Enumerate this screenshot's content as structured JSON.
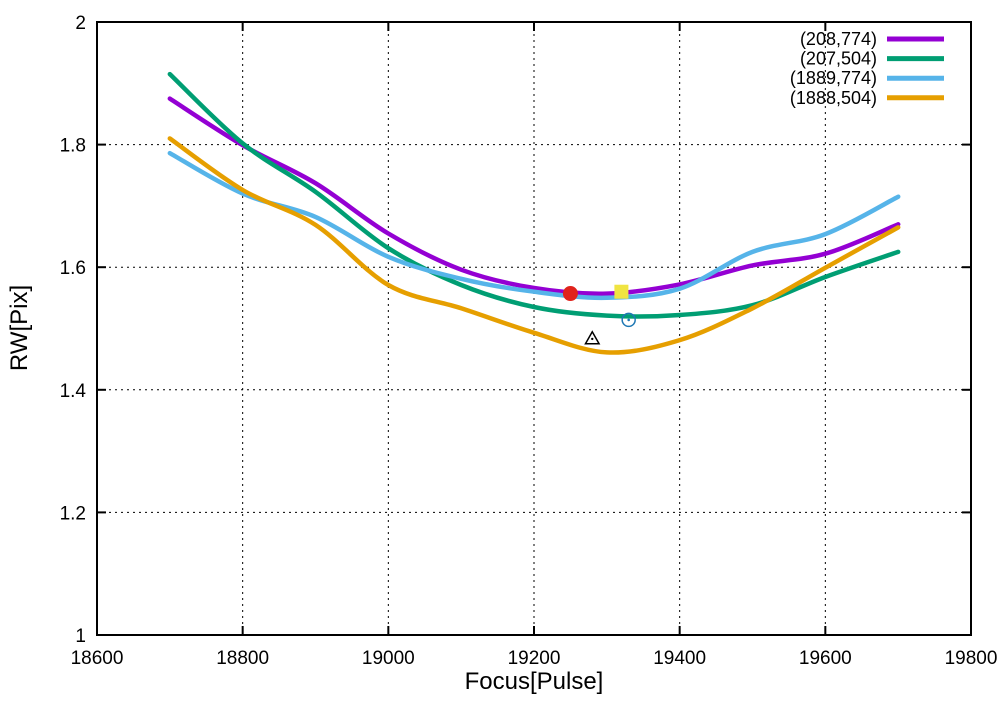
{
  "chart_data": {
    "type": "line",
    "title": "",
    "xlabel": "Focus[Pulse]",
    "ylabel": "RW[Pix]",
    "xlim": [
      18600,
      19800
    ],
    "ylim": [
      1,
      2
    ],
    "xticks": [
      18600,
      18800,
      19000,
      19200,
      19400,
      19600,
      19800
    ],
    "yticks": [
      1,
      1.2,
      1.4,
      1.6,
      1.8,
      2
    ],
    "ytick_labels": [
      "1",
      "1.2",
      "1.4",
      "1.6",
      "1.8",
      "2"
    ],
    "grid": "dotted",
    "legend_position": "top-right-inside",
    "x": [
      18700,
      18800,
      18900,
      19000,
      19100,
      19200,
      19300,
      19400,
      19500,
      19600,
      19700
    ],
    "series": [
      {
        "name": "(208,774)",
        "color": "#9400D3",
        "values": [
          1.875,
          1.799,
          1.737,
          1.655,
          1.596,
          1.566,
          1.557,
          1.572,
          1.603,
          1.622,
          1.67
        ]
      },
      {
        "name": "(207,504)",
        "color": "#009E73",
        "values": [
          1.915,
          1.802,
          1.723,
          1.631,
          1.571,
          1.535,
          1.521,
          1.522,
          1.538,
          1.584,
          1.625
        ]
      },
      {
        "name": "(1889,774)",
        "color": "#56B4E9",
        "values": [
          1.786,
          1.72,
          1.682,
          1.617,
          1.581,
          1.56,
          1.55,
          1.565,
          1.625,
          1.654,
          1.715
        ]
      },
      {
        "name": "(1888,504)",
        "color": "#E69F00",
        "values": [
          1.81,
          1.726,
          1.669,
          1.571,
          1.533,
          1.493,
          1.461,
          1.481,
          1.533,
          1.599,
          1.665
        ]
      }
    ],
    "markers": [
      {
        "shape": "circle-filled",
        "color": "#E0231C",
        "x": 19250,
        "y": 1.557
      },
      {
        "shape": "square-filled",
        "color": "#F0E442",
        "x": 19320,
        "y": 1.56
      },
      {
        "shape": "circle-open",
        "color": "#1F78B4",
        "x": 19330,
        "y": 1.514
      },
      {
        "shape": "triangle-open",
        "color": "#000000",
        "x": 19280,
        "y": 1.483
      }
    ],
    "axis_color": "#000000",
    "grid_color": "#000000"
  }
}
